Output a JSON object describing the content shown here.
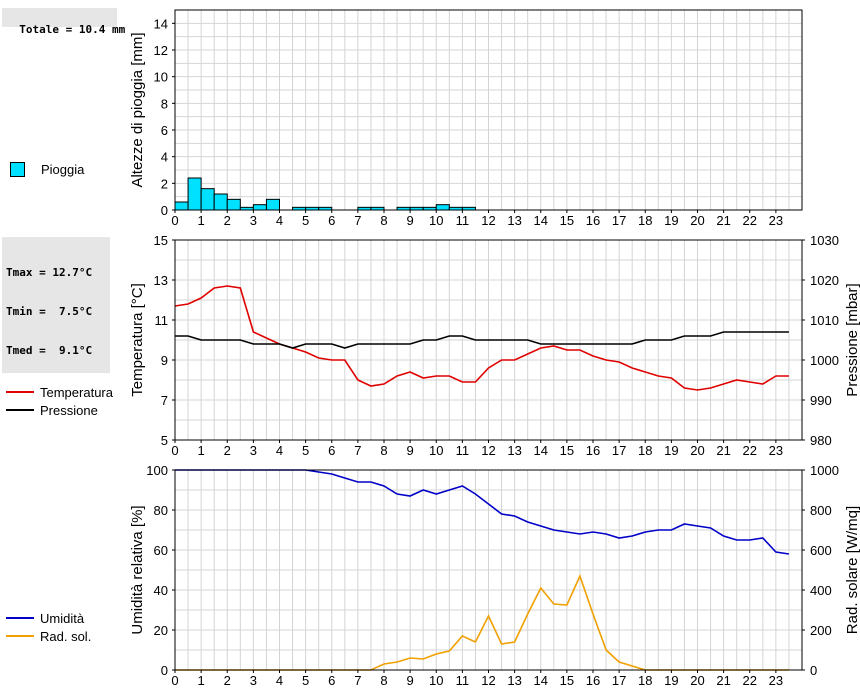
{
  "stats": {
    "totale": "Totale = 10.4 mm",
    "tmax": "Tmax = 12.7°C",
    "tmin": "Tmin =  7.5°C",
    "tmed": "Tmed =  9.1°C"
  },
  "legend": {
    "pioggia": "Pioggia",
    "temperatura": "Temperatura",
    "pressione": "Pressione",
    "umidita": "Umidità",
    "rad_sol": "Rad. sol."
  },
  "colors": {
    "rain": "#00e0ff",
    "temperature": "#e00000",
    "pressure": "#000000",
    "humidity": "#0000c8",
    "solar": "#f0a000",
    "grid": "#d4d4d4"
  },
  "chart_data": [
    {
      "type": "bar",
      "ylabel": "Altezze di pioggia [mm]",
      "ylim": [
        0,
        15
      ],
      "yticks": [
        0,
        2,
        4,
        6,
        8,
        10,
        12,
        14
      ],
      "xlim": [
        0,
        24
      ],
      "xticks": [
        0,
        1,
        2,
        3,
        4,
        5,
        6,
        7,
        8,
        9,
        10,
        11,
        12,
        13,
        14,
        15,
        16,
        17,
        18,
        19,
        20,
        21,
        22,
        23
      ],
      "grid": true,
      "series": [
        {
          "name": "Pioggia",
          "x": [
            0,
            0.5,
            1,
            1.5,
            2,
            2.5,
            3,
            3.5,
            4.5,
            5,
            5.5,
            7,
            7.5,
            8.5,
            9,
            9.5,
            10,
            10.5,
            11
          ],
          "values": [
            0.6,
            2.4,
            1.6,
            1.2,
            0.8,
            0.2,
            0.4,
            0.8,
            0.2,
            0.2,
            0.2,
            0.2,
            0.2,
            0.2,
            0.2,
            0.2,
            0.4,
            0.2,
            0.2
          ]
        }
      ]
    },
    {
      "type": "line",
      "ylabel": "Temperatura [°C]",
      "ylabel_right": "Pressione [mbar]",
      "ylim": [
        5,
        15
      ],
      "yticks": [
        5,
        7,
        9,
        11,
        13,
        15
      ],
      "ylim_right": [
        980,
        1030
      ],
      "yticks_right": [
        980,
        990,
        1000,
        1010,
        1020,
        1030
      ],
      "xlim": [
        0,
        24
      ],
      "xticks": [
        0,
        1,
        2,
        3,
        4,
        5,
        6,
        7,
        8,
        9,
        10,
        11,
        12,
        13,
        14,
        15,
        16,
        17,
        18,
        19,
        20,
        21,
        22,
        23
      ],
      "grid": true,
      "series": [
        {
          "name": "Temperatura",
          "axis": "left",
          "x": [
            0,
            0.5,
            1,
            1.5,
            2,
            2.5,
            3,
            3.5,
            4,
            4.5,
            5,
            5.5,
            6,
            6.5,
            7,
            7.5,
            8,
            8.5,
            9,
            9.5,
            10,
            10.5,
            11,
            11.5,
            12,
            12.5,
            13,
            13.5,
            14,
            14.5,
            15,
            15.5,
            16,
            16.5,
            17,
            17.5,
            18,
            18.5,
            19,
            19.5,
            20,
            20.5,
            21,
            21.5,
            22,
            22.5,
            23,
            23.5
          ],
          "values": [
            11.7,
            11.8,
            12.1,
            12.6,
            12.7,
            12.6,
            10.4,
            10.1,
            9.8,
            9.6,
            9.4,
            9.1,
            9.0,
            9.0,
            8.0,
            7.7,
            7.8,
            8.2,
            8.4,
            8.1,
            8.2,
            8.2,
            7.9,
            7.9,
            8.6,
            9.0,
            9.0,
            9.3,
            9.6,
            9.7,
            9.5,
            9.5,
            9.2,
            9.0,
            8.9,
            8.6,
            8.4,
            8.2,
            8.1,
            7.6,
            7.5,
            7.6,
            7.8,
            8.0,
            7.9,
            7.8,
            8.2,
            8.2
          ]
        },
        {
          "name": "Pressione",
          "axis": "right",
          "x": [
            0,
            0.5,
            1,
            1.5,
            2,
            2.5,
            3,
            3.5,
            4,
            4.5,
            5,
            5.5,
            6,
            6.5,
            7,
            7.5,
            8,
            8.5,
            9,
            9.5,
            10,
            10.5,
            11,
            11.5,
            12,
            12.5,
            13,
            13.5,
            14,
            14.5,
            15,
            15.5,
            16,
            16.5,
            17,
            17.5,
            18,
            18.5,
            19,
            19.5,
            20,
            20.5,
            21,
            21.5,
            22,
            22.5,
            23,
            23.5
          ],
          "values": [
            1006,
            1006,
            1005,
            1005,
            1005,
            1005,
            1004,
            1004,
            1004,
            1003,
            1004,
            1004,
            1004,
            1003,
            1004,
            1004,
            1004,
            1004,
            1004,
            1005,
            1005,
            1006,
            1006,
            1005,
            1005,
            1005,
            1005,
            1005,
            1004,
            1004,
            1004,
            1004,
            1004,
            1004,
            1004,
            1004,
            1005,
            1005,
            1005,
            1006,
            1006,
            1006,
            1007,
            1007,
            1007,
            1007,
            1007,
            1007
          ]
        }
      ]
    },
    {
      "type": "line",
      "ylabel": "Umidità relativa [%]",
      "ylabel_right": "Rad. solare [W/mq]",
      "ylim": [
        0,
        100
      ],
      "yticks": [
        0,
        20,
        40,
        60,
        80,
        100
      ],
      "ylim_right": [
        0,
        1000
      ],
      "yticks_right": [
        0,
        200,
        400,
        600,
        800,
        1000
      ],
      "xlim": [
        0,
        24
      ],
      "xticks": [
        0,
        1,
        2,
        3,
        4,
        5,
        6,
        7,
        8,
        9,
        10,
        11,
        12,
        13,
        14,
        15,
        16,
        17,
        18,
        19,
        20,
        21,
        22,
        23
      ],
      "grid": true,
      "series": [
        {
          "name": "Umidità",
          "axis": "left",
          "x": [
            0,
            0.5,
            1,
            1.5,
            2,
            2.5,
            3,
            3.5,
            4,
            4.5,
            5,
            5.5,
            6,
            6.5,
            7,
            7.5,
            8,
            8.5,
            9,
            9.5,
            10,
            10.5,
            11,
            11.5,
            12,
            12.5,
            13,
            13.5,
            14,
            14.5,
            15,
            15.5,
            16,
            16.5,
            17,
            17.5,
            18,
            18.5,
            19,
            19.5,
            20,
            20.5,
            21,
            21.5,
            22,
            22.5,
            23,
            23.5
          ],
          "values": [
            100,
            100,
            100,
            100,
            100,
            100,
            100,
            100,
            100,
            100,
            100,
            99,
            98,
            96,
            94,
            94,
            92,
            88,
            87,
            90,
            88,
            90,
            92,
            88,
            83,
            78,
            77,
            74,
            72,
            70,
            69,
            68,
            69,
            68,
            66,
            67,
            69,
            70,
            70,
            73,
            72,
            71,
            67,
            65,
            65,
            66,
            59,
            58
          ]
        },
        {
          "name": "Rad. sol.",
          "axis": "right",
          "x": [
            0,
            0.5,
            1,
            1.5,
            2,
            2.5,
            3,
            3.5,
            4,
            4.5,
            5,
            5.5,
            6,
            6.5,
            7,
            7.5,
            8,
            8.5,
            9,
            9.5,
            10,
            10.5,
            11,
            11.5,
            12,
            12.5,
            13,
            13.5,
            14,
            14.5,
            15,
            15.5,
            16,
            16.5,
            17,
            17.5,
            18,
            18.5,
            19,
            19.5,
            20,
            20.5,
            21,
            21.5,
            22,
            22.5,
            23,
            23.5
          ],
          "values": [
            0,
            0,
            0,
            0,
            0,
            0,
            0,
            0,
            0,
            0,
            0,
            0,
            0,
            0,
            0,
            0,
            30,
            40,
            60,
            55,
            80,
            95,
            170,
            140,
            270,
            130,
            140,
            280,
            410,
            330,
            325,
            470,
            280,
            100,
            40,
            20,
            0,
            0,
            0,
            0,
            0,
            0,
            0,
            0,
            0,
            0,
            0,
            0
          ]
        }
      ]
    }
  ]
}
